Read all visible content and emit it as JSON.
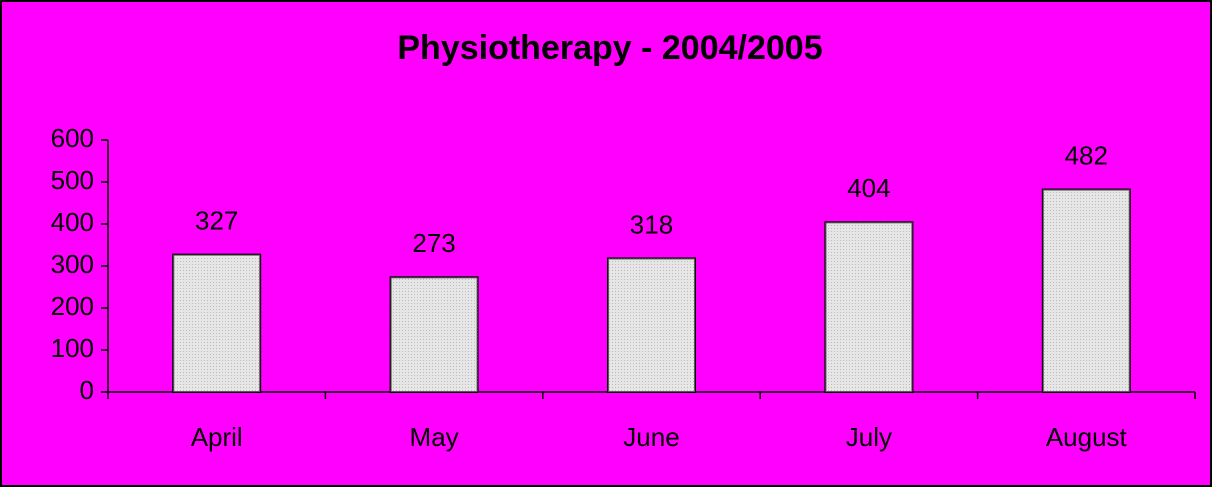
{
  "chart_data": {
    "type": "bar",
    "title": "Physiotherapy - 2004/2005",
    "categories": [
      "April",
      "May",
      "June",
      "July",
      "August"
    ],
    "values": [
      327,
      273,
      318,
      404,
      482
    ],
    "color": "#d8d8d8",
    "ylim": [
      0,
      600
    ],
    "yticks": [
      0,
      100,
      200,
      300,
      400,
      500,
      600
    ],
    "grid": false
  }
}
